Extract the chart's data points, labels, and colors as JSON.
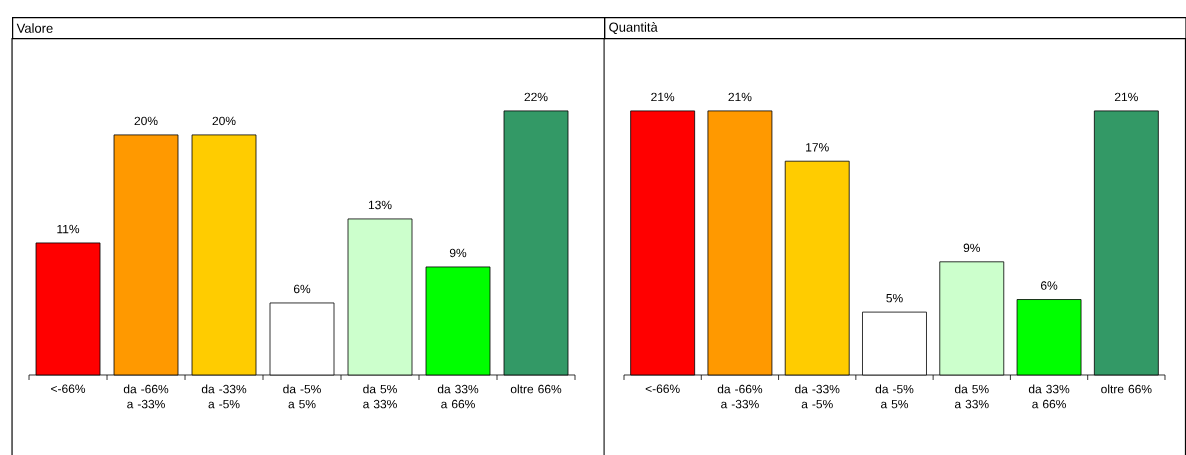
{
  "chart_data": [
    {
      "type": "bar",
      "title": "Valore",
      "categories": [
        "<-66%",
        "da -66% a -33%",
        "da -33% a -5%",
        "da -5% a 5%",
        "da 5% a 33%",
        "da 33% a 66%",
        "oltre 66%"
      ],
      "values": [
        11,
        20,
        20,
        6,
        13,
        9,
        22
      ],
      "value_labels": [
        "11%",
        "20%",
        "20%",
        "6%",
        "13%",
        "9%",
        "22%"
      ],
      "colors": [
        "#ff0000",
        "#ff9900",
        "#ffcc00",
        "#ffffff",
        "#ccffcc",
        "#00ff00",
        "#339966"
      ]
    },
    {
      "type": "bar",
      "title": "Quantità",
      "categories": [
        "<-66%",
        "da -66% a -33%",
        "da -33% a -5%",
        "da -5% a 5%",
        "da 5% a 33%",
        "da 33% a 66%",
        "oltre 66%"
      ],
      "values": [
        21,
        21,
        17,
        5,
        9,
        6,
        21
      ],
      "value_labels": [
        "21%",
        "21%",
        "17%",
        "5%",
        "9%",
        "6%",
        "21%"
      ],
      "colors": [
        "#ff0000",
        "#ff9900",
        "#ffcc00",
        "#ffffff",
        "#ccffcc",
        "#00ff00",
        "#339966"
      ]
    }
  ]
}
